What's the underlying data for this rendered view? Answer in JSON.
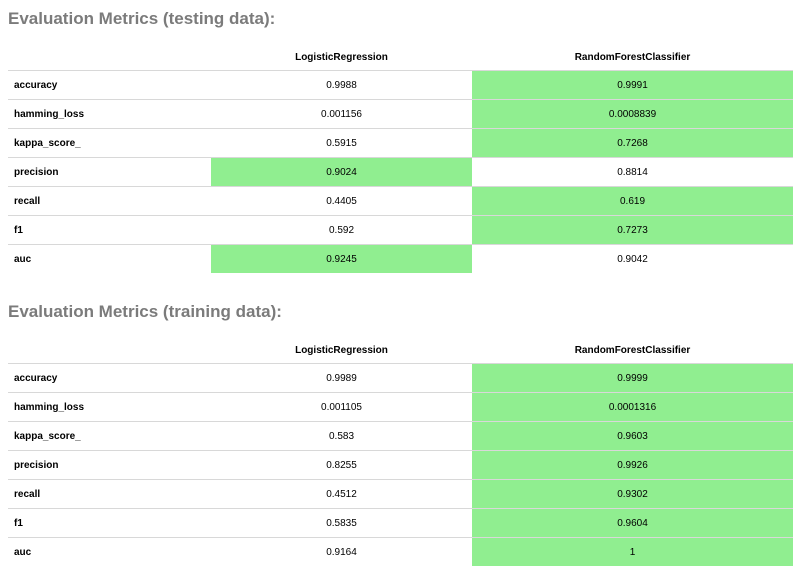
{
  "highlight_color": "#90ee90",
  "testing": {
    "title": "Evaluation Metrics (testing data):",
    "columns": [
      "LogisticRegression",
      "RandomForestClassifier"
    ],
    "rows": [
      {
        "metric": "accuracy",
        "lr": "0.9988",
        "rf": "0.9991",
        "best": "rf"
      },
      {
        "metric": "hamming_loss",
        "lr": "0.001156",
        "rf": "0.0008839",
        "best": "rf"
      },
      {
        "metric": "kappa_score_",
        "lr": "0.5915",
        "rf": "0.7268",
        "best": "rf"
      },
      {
        "metric": "precision",
        "lr": "0.9024",
        "rf": "0.8814",
        "best": "lr"
      },
      {
        "metric": "recall",
        "lr": "0.4405",
        "rf": "0.619",
        "best": "rf"
      },
      {
        "metric": "f1",
        "lr": "0.592",
        "rf": "0.7273",
        "best": "rf"
      },
      {
        "metric": "auc",
        "lr": "0.9245",
        "rf": "0.9042",
        "best": "lr"
      }
    ]
  },
  "training": {
    "title": "Evaluation Metrics (training data):",
    "columns": [
      "LogisticRegression",
      "RandomForestClassifier"
    ],
    "rows": [
      {
        "metric": "accuracy",
        "lr": "0.9989",
        "rf": "0.9999",
        "best": "rf"
      },
      {
        "metric": "hamming_loss",
        "lr": "0.001105",
        "rf": "0.0001316",
        "best": "rf"
      },
      {
        "metric": "kappa_score_",
        "lr": "0.583",
        "rf": "0.9603",
        "best": "rf"
      },
      {
        "metric": "precision",
        "lr": "0.8255",
        "rf": "0.9926",
        "best": "rf"
      },
      {
        "metric": "recall",
        "lr": "0.4512",
        "rf": "0.9302",
        "best": "rf"
      },
      {
        "metric": "f1",
        "lr": "0.5835",
        "rf": "0.9604",
        "best": "rf"
      },
      {
        "metric": "auc",
        "lr": "0.9164",
        "rf": "1",
        "best": "rf"
      }
    ]
  }
}
